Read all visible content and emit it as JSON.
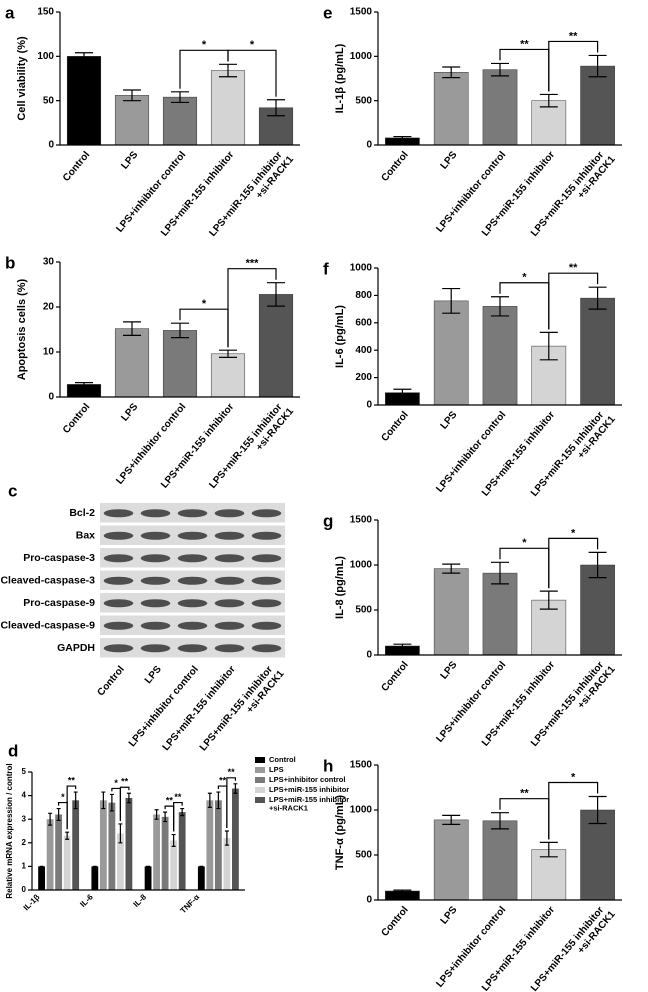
{
  "chart_data": [
    {
      "type": "bar",
      "label": "a",
      "ylabel": "Cell viability (%)",
      "categories": [
        "Control",
        "LPS",
        "LPS+inhibitor control",
        "LPS+miR-155 inhibitor",
        [
          "LPS+miR-155 inhibitor",
          "+si-RACK1"
        ]
      ],
      "values": [
        100,
        56,
        54,
        84,
        42
      ],
      "errors": [
        4,
        6,
        6,
        7,
        9
      ],
      "colors": [
        "#000000",
        "#9a9a9a",
        "#7a7a7a",
        "#d4d4d4",
        "#555555"
      ],
      "ylim": [
        0,
        150
      ],
      "yticks": [
        0,
        50,
        100,
        150
      ],
      "annotations": [
        {
          "from": 2,
          "to": 3,
          "text": "*"
        },
        {
          "from": 3,
          "to": 4,
          "text": "*"
        }
      ]
    },
    {
      "type": "bar",
      "label": "b",
      "ylabel": "Apoptosis cells (%)",
      "categories": [
        "Control",
        "LPS",
        "LPS+inhibitor control",
        "LPS+miR-155 inhibitor",
        [
          "LPS+miR-155 inhibitor",
          "+si-RACK1"
        ]
      ],
      "values": [
        2.8,
        15.2,
        14.8,
        9.6,
        22.8
      ],
      "errors": [
        0.4,
        1.5,
        1.6,
        0.8,
        2.6
      ],
      "colors": [
        "#000000",
        "#9a9a9a",
        "#7a7a7a",
        "#d4d4d4",
        "#555555"
      ],
      "ylim": [
        0,
        30
      ],
      "yticks": [
        0,
        10,
        20,
        30
      ],
      "annotations": [
        {
          "from": 2,
          "to": 3,
          "text": "*"
        },
        {
          "from": 3,
          "to": 4,
          "text": "***"
        }
      ]
    },
    {
      "type": "blot",
      "label": "c",
      "rows": [
        "Bcl-2",
        "Bax",
        "Pro-caspase-3",
        "Cleaved-caspase-3",
        "Pro-caspase-9",
        "Cleaved-caspase-9",
        "GAPDH"
      ],
      "categories": [
        "Control",
        "LPS",
        "LPS+inhibitor control",
        "LPS+miR-155 inhibitor",
        [
          "LPS+miR-155 inhibitor",
          "+si-RACK1"
        ]
      ]
    },
    {
      "type": "grouped_bar",
      "label": "d",
      "ylabel": "Relative mRNA expression / control",
      "categories": [
        "IL-1β",
        "IL-6",
        "IL-8",
        "TNF-α"
      ],
      "series": [
        {
          "name": "Control",
          "color": "#000000",
          "values": [
            1,
            1,
            1,
            1
          ],
          "errors": [
            0,
            0,
            0,
            0
          ]
        },
        {
          "name": "LPS",
          "color": "#9a9a9a",
          "values": [
            3.0,
            3.8,
            3.2,
            3.8
          ],
          "errors": [
            0.25,
            0.35,
            0.2,
            0.3
          ]
        },
        {
          "name": "LPS+inhibitor control",
          "color": "#7a7a7a",
          "values": [
            3.2,
            3.7,
            3.1,
            3.8
          ],
          "errors": [
            0.25,
            0.35,
            0.2,
            0.35
          ]
        },
        {
          "name": "LPS+miR-155 inhibitor",
          "color": "#d4d4d4",
          "values": [
            2.3,
            2.4,
            2.1,
            2.2
          ],
          "errors": [
            0.15,
            0.4,
            0.25,
            0.3
          ]
        },
        {
          "name": [
            "LPS+miR-155 inhibitor",
            "+si-RACK1"
          ],
          "color": "#555555",
          "values": [
            3.8,
            3.9,
            3.3,
            4.3
          ],
          "errors": [
            0.35,
            0.2,
            0.15,
            0.2
          ]
        }
      ],
      "ylim": [
        0,
        5
      ],
      "yticks": [
        0,
        1,
        2,
        3,
        4,
        5
      ],
      "annotations": [
        {
          "group": 0,
          "from": 2,
          "to": 3,
          "text": "*"
        },
        {
          "group": 0,
          "from": 3,
          "to": 4,
          "text": "**"
        },
        {
          "group": 1,
          "from": 2,
          "to": 3,
          "text": "*"
        },
        {
          "group": 1,
          "from": 3,
          "to": 4,
          "text": "**"
        },
        {
          "group": 2,
          "from": 2,
          "to": 3,
          "text": "**"
        },
        {
          "group": 2,
          "from": 3,
          "to": 4,
          "text": "**"
        },
        {
          "group": 3,
          "from": 2,
          "to": 3,
          "text": "**"
        },
        {
          "group": 3,
          "from": 3,
          "to": 4,
          "text": "**"
        }
      ]
    },
    {
      "type": "bar",
      "label": "e",
      "ylabel": "IL-1β  (pg/mL)",
      "categories": [
        "Control",
        "LPS",
        "LPS+inhibitor control",
        "LPS+miR-155 inhibitor",
        [
          "LPS+miR-155 inhibitor",
          "+si-RACK1"
        ]
      ],
      "values": [
        80,
        820,
        850,
        500,
        890
      ],
      "errors": [
        15,
        60,
        70,
        70,
        120
      ],
      "colors": [
        "#000000",
        "#9a9a9a",
        "#7a7a7a",
        "#d4d4d4",
        "#555555"
      ],
      "ylim": [
        0,
        1500
      ],
      "yticks": [
        0,
        500,
        1000,
        1500
      ],
      "annotations": [
        {
          "from": 2,
          "to": 3,
          "text": "**"
        },
        {
          "from": 3,
          "to": 4,
          "text": "**"
        }
      ]
    },
    {
      "type": "bar",
      "label": "f",
      "ylabel": "IL-6  (pg/mL)",
      "categories": [
        "Control",
        "LPS",
        "LPS+inhibitor control",
        "LPS+miR-155 inhibitor",
        [
          "LPS+miR-155 inhibitor",
          "+si-RACK1"
        ]
      ],
      "values": [
        90,
        760,
        720,
        430,
        780
      ],
      "errors": [
        25,
        90,
        70,
        100,
        80
      ],
      "colors": [
        "#000000",
        "#9a9a9a",
        "#7a7a7a",
        "#d4d4d4",
        "#555555"
      ],
      "ylim": [
        0,
        1000
      ],
      "yticks": [
        0,
        200,
        400,
        600,
        800,
        1000
      ],
      "annotations": [
        {
          "from": 2,
          "to": 3,
          "text": "*"
        },
        {
          "from": 3,
          "to": 4,
          "text": "**"
        }
      ]
    },
    {
      "type": "bar",
      "label": "g",
      "ylabel": "IL-8  (pg/mL)",
      "categories": [
        "Control",
        "LPS",
        "LPS+inhibitor control",
        "LPS+miR-155 inhibitor",
        [
          "LPS+miR-155 inhibitor",
          "+si-RACK1"
        ]
      ],
      "values": [
        100,
        960,
        910,
        610,
        1000
      ],
      "errors": [
        20,
        50,
        120,
        100,
        140
      ],
      "colors": [
        "#000000",
        "#9a9a9a",
        "#7a7a7a",
        "#d4d4d4",
        "#555555"
      ],
      "ylim": [
        0,
        1500
      ],
      "yticks": [
        0,
        500,
        1000,
        1500
      ],
      "annotations": [
        {
          "from": 2,
          "to": 3,
          "text": "*"
        },
        {
          "from": 3,
          "to": 4,
          "text": "*"
        }
      ]
    },
    {
      "type": "bar",
      "label": "h",
      "ylabel": "TNF-α  (pg/mL)",
      "categories": [
        "Control",
        "LPS",
        "LPS+inhibitor control",
        "LPS+miR-155 inhibitor",
        [
          "LPS+miR-155 inhibitor",
          "+si-RACK1"
        ]
      ],
      "values": [
        100,
        890,
        880,
        560,
        1000
      ],
      "errors": [
        10,
        50,
        90,
        80,
        150
      ],
      "colors": [
        "#000000",
        "#9a9a9a",
        "#7a7a7a",
        "#d4d4d4",
        "#555555"
      ],
      "ylim": [
        0,
        1500
      ],
      "yticks": [
        0,
        500,
        1000,
        1500
      ],
      "annotations": [
        {
          "from": 2,
          "to": 3,
          "text": "**"
        },
        {
          "from": 3,
          "to": 4,
          "text": "*"
        }
      ]
    }
  ]
}
